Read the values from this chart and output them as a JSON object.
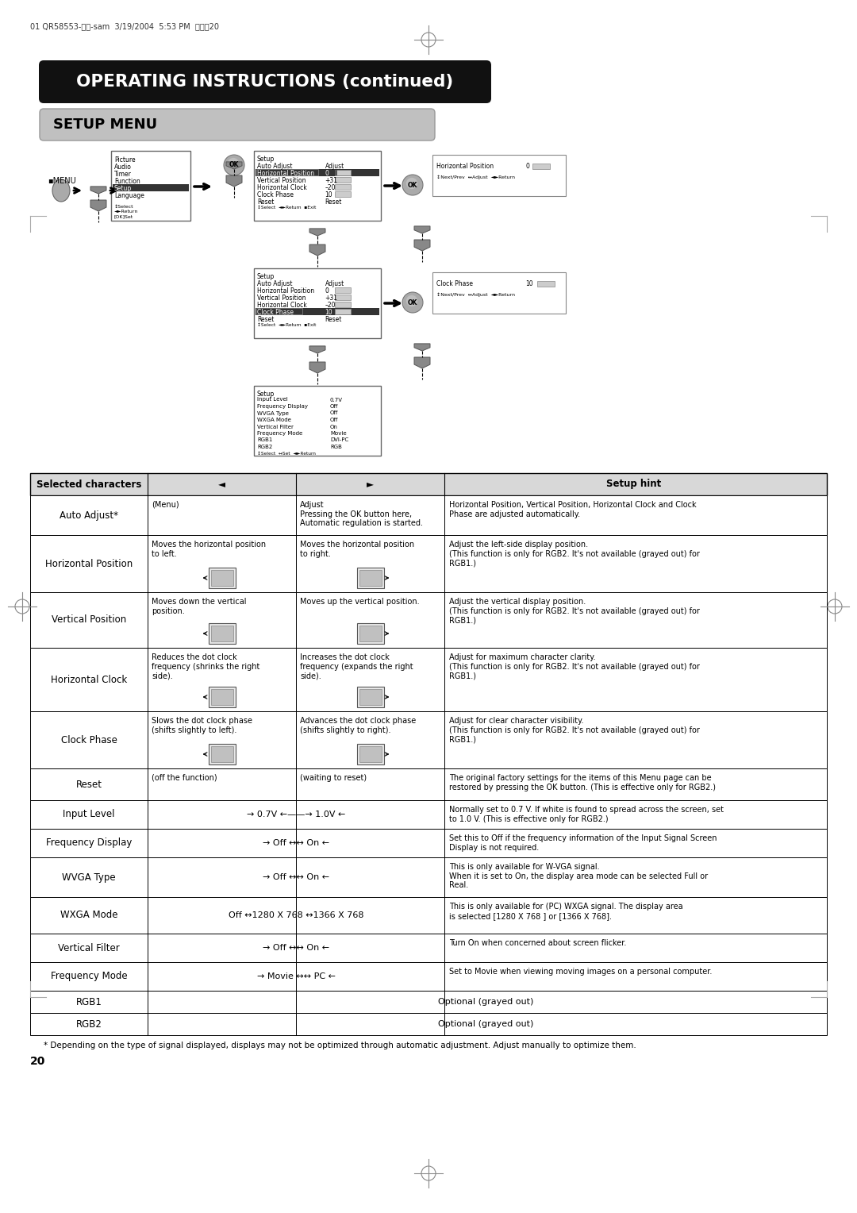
{
  "header_text": "01 QR58553-英語-sam  3/19/2004  5:53 PM  ペーシ20",
  "title1": "OPERATING INSTRUCTIONS (continued)",
  "title2": "SETUP MENU",
  "footnote": "* Depending on the type of signal displayed, displays may not be optimized through automatic adjustment. Adjust manually to optimize them.",
  "page_number": "20",
  "bg_color": "#ffffff"
}
